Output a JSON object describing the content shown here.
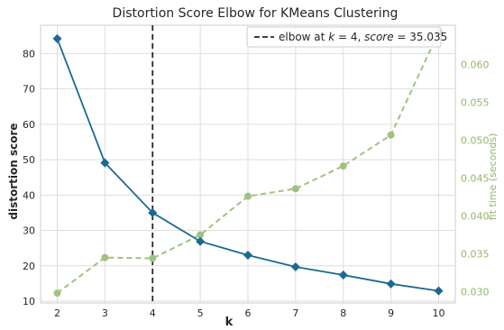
{
  "chart_data": {
    "type": "line",
    "title": "Distortion Score Elbow for KMeans Clustering",
    "xlabel": "k",
    "ylabel": "distortion score",
    "y2label": "fit time (seconds)",
    "x": [
      2,
      3,
      4,
      5,
      6,
      7,
      8,
      9,
      10
    ],
    "xlim": [
      1.65,
      10.35
    ],
    "ylim": [
      9.5,
      88
    ],
    "y2lim": [
      0.0285,
      0.0652
    ],
    "x_ticks": [
      2,
      3,
      4,
      5,
      6,
      7,
      8,
      9,
      10
    ],
    "y_ticks": [
      10,
      20,
      30,
      40,
      50,
      60,
      70,
      80
    ],
    "y2_ticks": [
      0.03,
      0.035,
      0.04,
      0.045,
      0.05,
      0.055,
      0.06
    ],
    "grid": true,
    "legend_placement": "top-right",
    "series": [
      {
        "name": "distortion score",
        "axis": "left",
        "color": "#1b6a92",
        "style": "solid",
        "marker": "diamond",
        "values": [
          84.2,
          49.1,
          35.0,
          26.9,
          23.0,
          19.7,
          17.4,
          14.9,
          12.9
        ]
      },
      {
        "name": "fit time",
        "axis": "right",
        "color": "#9fc37f",
        "style": "dashed",
        "marker": "circle",
        "values": [
          0.0298,
          0.0345,
          0.0344,
          0.0375,
          0.0426,
          0.0436,
          0.0466,
          0.0507,
          0.0643
        ]
      }
    ],
    "elbow": {
      "k": 4,
      "color": "#262626",
      "legend_prefix": "elbow at ",
      "legend_k": "k",
      "legend_eq1": " = 4, ",
      "legend_score": "score",
      "legend_eq2": " = 35.035"
    }
  }
}
